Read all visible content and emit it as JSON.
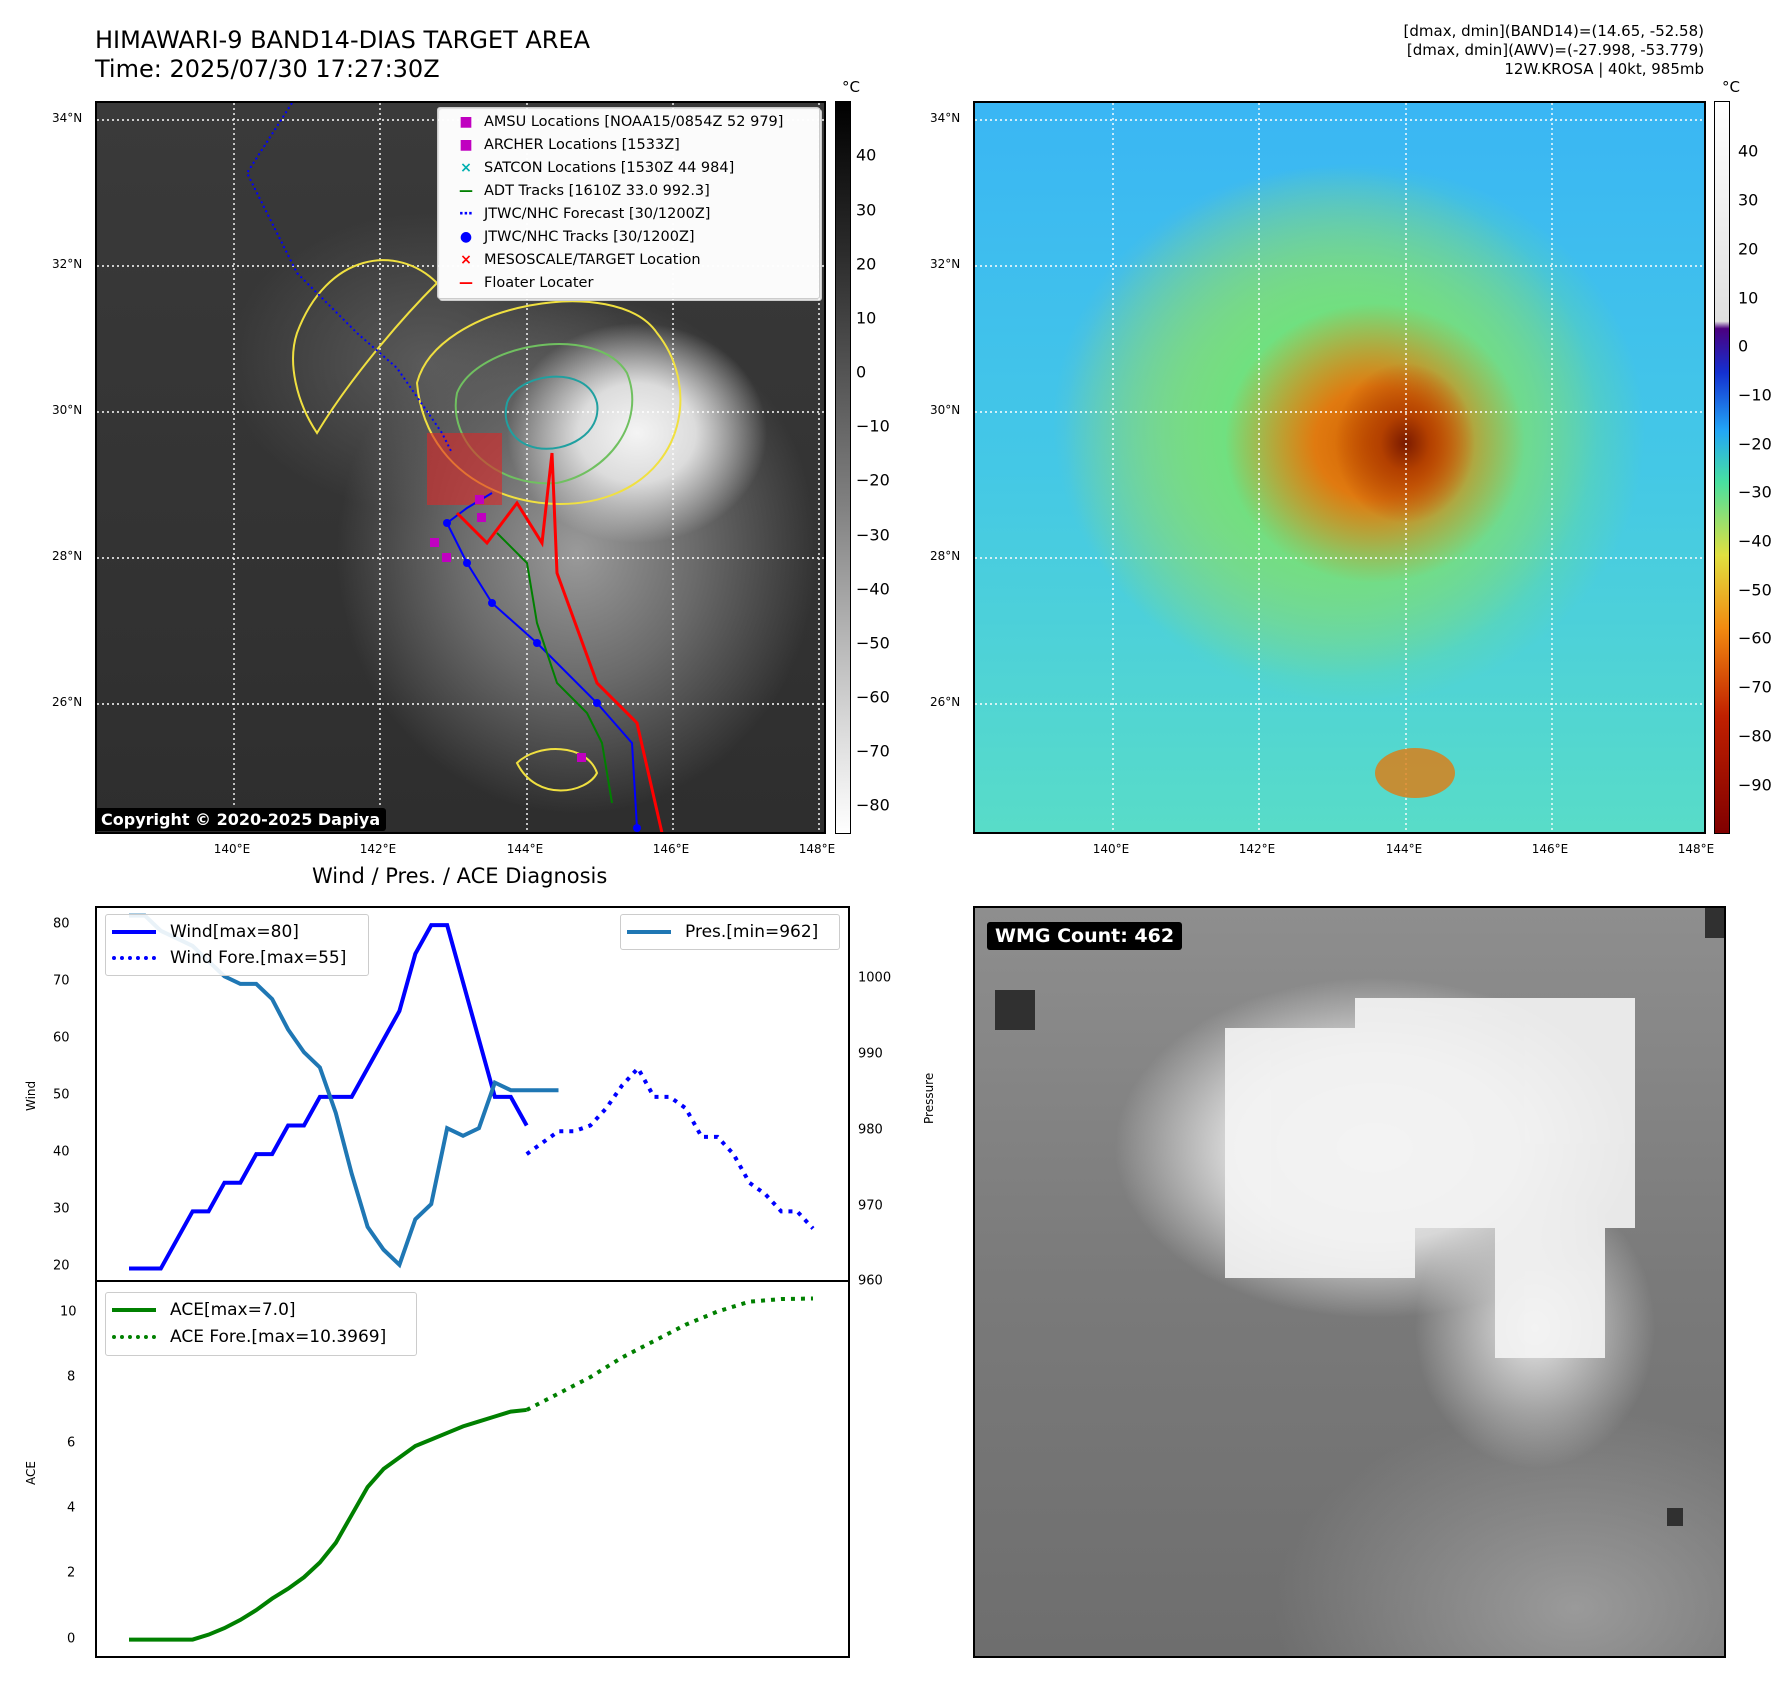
{
  "header": {
    "title_line1": "HIMAWARI-9 BAND14-DIAS TARGET AREA",
    "title_line2": "Time: 2025/07/30 17:27:30Z",
    "info_line1": "[dmax, dmin](BAND14)=(14.65, -52.58)",
    "info_line2": "[dmax, dmin](AWV)=(-27.998, -53.779)",
    "info_line3": "12W.KROSA | 40kt, 985mb"
  },
  "map": {
    "lat_labels": [
      "34°N",
      "32°N",
      "30°N",
      "28°N",
      "26°N"
    ],
    "lon_labels": [
      "140°E",
      "142°E",
      "144°E",
      "146°E",
      "148°E"
    ],
    "unit": "°C",
    "gray_ticks": [
      "40",
      "30",
      "20",
      "10",
      "0",
      "−10",
      "−20",
      "−30",
      "−40",
      "−50",
      "−60",
      "−70",
      "−80"
    ],
    "color_ticks": [
      "40",
      "30",
      "20",
      "10",
      "0",
      "−10",
      "−20",
      "−30",
      "−40",
      "−50",
      "−60",
      "−70",
      "−80",
      "−90"
    ],
    "copyright": "Copyright © 2020-2025 Dapiya",
    "legend": [
      {
        "label": "AMSU Locations [NOAA15/0854Z 52 979]",
        "symbol": "■",
        "color": "#c000c0"
      },
      {
        "label": "ARCHER Locations [1533Z]",
        "symbol": "■",
        "color": "#c000c0"
      },
      {
        "label": "SATCON Locations [1530Z 44 984]",
        "symbol": "×",
        "color": "#00b0b0"
      },
      {
        "label": "ADT Tracks [1610Z 33.0 992.3]",
        "symbol": "—",
        "color": "#008000"
      },
      {
        "label": "JTWC/NHC Forecast [30/1200Z]",
        "symbol": "⋯",
        "color": "#0000ff"
      },
      {
        "label": "JTWC/NHC Tracks [30/1200Z]",
        "symbol": "●",
        "color": "#0000ff"
      },
      {
        "label": "MESOSCALE/TARGET Location",
        "symbol": "×",
        "color": "#ff0000"
      },
      {
        "label": "Floater Locater",
        "symbol": "—",
        "color": "#ff0000"
      }
    ]
  },
  "timeseries": {
    "title": "Wind / Pres. / ACE Diagnosis",
    "wind_ylabel": "Wind",
    "pres_ylabel": "Pressure",
    "ace_ylabel": "ACE",
    "wind_legend": "Wind[max=80]",
    "wind_fore_legend": "Wind Fore.[max=55]",
    "pres_legend": "Pres.[min=962]",
    "ace_legend": "ACE[max=7.0]",
    "ace_fore_legend": "ACE Fore.[max=10.3969]",
    "wind_ticks": [
      "80",
      "70",
      "60",
      "50",
      "40",
      "30",
      "20"
    ],
    "pres_ticks": [
      "1000",
      "990",
      "980",
      "970",
      "960"
    ],
    "ace_ticks": [
      "10",
      "8",
      "6",
      "4",
      "2",
      "0"
    ]
  },
  "wmg": {
    "badge": "WMG Count: 462"
  },
  "chart_data": [
    {
      "type": "line",
      "ylabel": "Wind",
      "ylim": [
        18,
        83
      ],
      "series": [
        {
          "name": "Wind[max=80]",
          "color": "#0000ff",
          "style": "solid",
          "x": [
            0,
            1,
            2,
            3,
            4,
            5,
            6,
            7,
            8,
            9,
            10,
            11,
            12,
            13,
            14,
            15,
            16,
            17,
            18,
            19,
            20,
            21,
            22,
            23,
            24,
            25
          ],
          "values": [
            20,
            20,
            20,
            25,
            30,
            30,
            35,
            35,
            40,
            40,
            45,
            45,
            50,
            50,
            50,
            55,
            60,
            65,
            75,
            80,
            80,
            70,
            60,
            50,
            50,
            45
          ]
        },
        {
          "name": "Wind Fore.[max=55]",
          "color": "#0000ff",
          "style": "dotted",
          "x": [
            25,
            26,
            27,
            28,
            29,
            30,
            31,
            32,
            33,
            34,
            35,
            36,
            37,
            38,
            39,
            40,
            41,
            42,
            43
          ],
          "values": [
            40,
            42,
            44,
            44,
            45,
            48,
            52,
            55,
            50,
            50,
            48,
            43,
            43,
            40,
            35,
            33,
            30,
            30,
            27
          ]
        }
      ]
    },
    {
      "type": "line",
      "ylabel": "Pressure",
      "ylim": [
        960,
        1009
      ],
      "series": [
        {
          "name": "Pres.[min=962]",
          "color": "#1f77b4",
          "style": "solid",
          "x": [
            0,
            1,
            2,
            3,
            4,
            5,
            6,
            7,
            8,
            9,
            10,
            11,
            12,
            13,
            14,
            15,
            16,
            17,
            18,
            19,
            20,
            21,
            22,
            23,
            24,
            25,
            26,
            27
          ],
          "values": [
            1008,
            1008,
            1006,
            1005,
            1004,
            1002,
            1000,
            999,
            999,
            997,
            993,
            990,
            988,
            982,
            974,
            967,
            964,
            962,
            968,
            970,
            980,
            979,
            980,
            986,
            985,
            985,
            985,
            985
          ]
        }
      ]
    },
    {
      "type": "line",
      "ylabel": "ACE",
      "ylim": [
        -0.5,
        10.9
      ],
      "series": [
        {
          "name": "ACE[max=7.0]",
          "color": "#008000",
          "style": "solid",
          "x": [
            0,
            1,
            2,
            3,
            4,
            5,
            6,
            7,
            8,
            9,
            10,
            11,
            12,
            13,
            14,
            15,
            16,
            17,
            18,
            19,
            20,
            21,
            22,
            23,
            24,
            25
          ],
          "values": [
            0,
            0,
            0,
            0,
            0,
            0.15,
            0.35,
            0.6,
            0.9,
            1.25,
            1.55,
            1.9,
            2.35,
            2.95,
            3.8,
            4.65,
            5.2,
            5.55,
            5.9,
            6.1,
            6.3,
            6.5,
            6.65,
            6.8,
            6.95,
            7.0
          ]
        },
        {
          "name": "ACE Fore.[max=10.3969]",
          "color": "#008000",
          "style": "dotted",
          "x": [
            25,
            27,
            29,
            31,
            33,
            35,
            37,
            39,
            41,
            43
          ],
          "values": [
            7.0,
            7.5,
            8.0,
            8.6,
            9.1,
            9.6,
            10.0,
            10.3,
            10.38,
            10.3969
          ]
        }
      ]
    }
  ]
}
